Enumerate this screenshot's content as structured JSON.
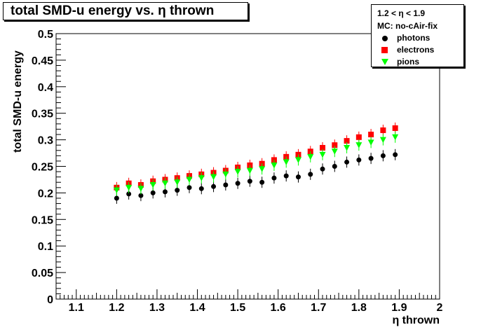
{
  "chart_data": {
    "type": "scatter",
    "title": "total SMD-u energy vs. η thrown",
    "xlabel": "η thrown",
    "ylabel": "total SMD-u energy",
    "xlim": [
      1.05,
      2.0
    ],
    "ylim": [
      0,
      0.5
    ],
    "x_ticks": [
      "1.1",
      "1.2",
      "1.3",
      "1.4",
      "1.5",
      "1.6",
      "1.7",
      "1.8",
      "1.9",
      "2"
    ],
    "y_ticks": [
      "0",
      "0.05",
      "0.1",
      "0.15",
      "0.2",
      "0.25",
      "0.3",
      "0.35",
      "0.4",
      "0.45",
      "0.5"
    ],
    "grid": false,
    "legend_position": "top-right",
    "legend_header": [
      "1.2 < η < 1.9",
      "MC: no-cAir-fix"
    ],
    "series": [
      {
        "name": "photons",
        "marker": "circle",
        "color": "#000000",
        "x": [
          1.2,
          1.23,
          1.26,
          1.29,
          1.32,
          1.35,
          1.38,
          1.41,
          1.44,
          1.47,
          1.5,
          1.53,
          1.56,
          1.59,
          1.62,
          1.65,
          1.68,
          1.71,
          1.74,
          1.77,
          1.8,
          1.83,
          1.86,
          1.89
        ],
        "values": [
          0.19,
          0.198,
          0.195,
          0.2,
          0.202,
          0.205,
          0.21,
          0.208,
          0.212,
          0.215,
          0.218,
          0.222,
          0.22,
          0.228,
          0.232,
          0.23,
          0.235,
          0.245,
          0.25,
          0.258,
          0.262,
          0.265,
          0.27,
          0.272
        ]
      },
      {
        "name": "electrons",
        "marker": "square",
        "color": "#ff0000",
        "x": [
          1.2,
          1.23,
          1.26,
          1.29,
          1.32,
          1.35,
          1.38,
          1.41,
          1.44,
          1.47,
          1.5,
          1.53,
          1.56,
          1.59,
          1.62,
          1.65,
          1.68,
          1.71,
          1.74,
          1.77,
          1.8,
          1.83,
          1.86,
          1.89
        ],
        "values": [
          0.21,
          0.218,
          0.215,
          0.222,
          0.225,
          0.228,
          0.232,
          0.235,
          0.238,
          0.242,
          0.248,
          0.252,
          0.255,
          0.262,
          0.268,
          0.272,
          0.278,
          0.285,
          0.29,
          0.298,
          0.305,
          0.31,
          0.318,
          0.322
        ]
      },
      {
        "name": "pions",
        "marker": "triangle-down",
        "color": "#00ff00",
        "x": [
          1.2,
          1.23,
          1.26,
          1.29,
          1.32,
          1.35,
          1.38,
          1.41,
          1.44,
          1.47,
          1.5,
          1.53,
          1.56,
          1.59,
          1.62,
          1.65,
          1.68,
          1.71,
          1.74,
          1.77,
          1.8,
          1.83,
          1.86,
          1.89
        ],
        "values": [
          0.205,
          0.21,
          0.208,
          0.215,
          0.218,
          0.22,
          0.225,
          0.228,
          0.23,
          0.235,
          0.24,
          0.242,
          0.245,
          0.252,
          0.258,
          0.262,
          0.268,
          0.272,
          0.278,
          0.285,
          0.29,
          0.295,
          0.3,
          0.305
        ]
      }
    ]
  }
}
